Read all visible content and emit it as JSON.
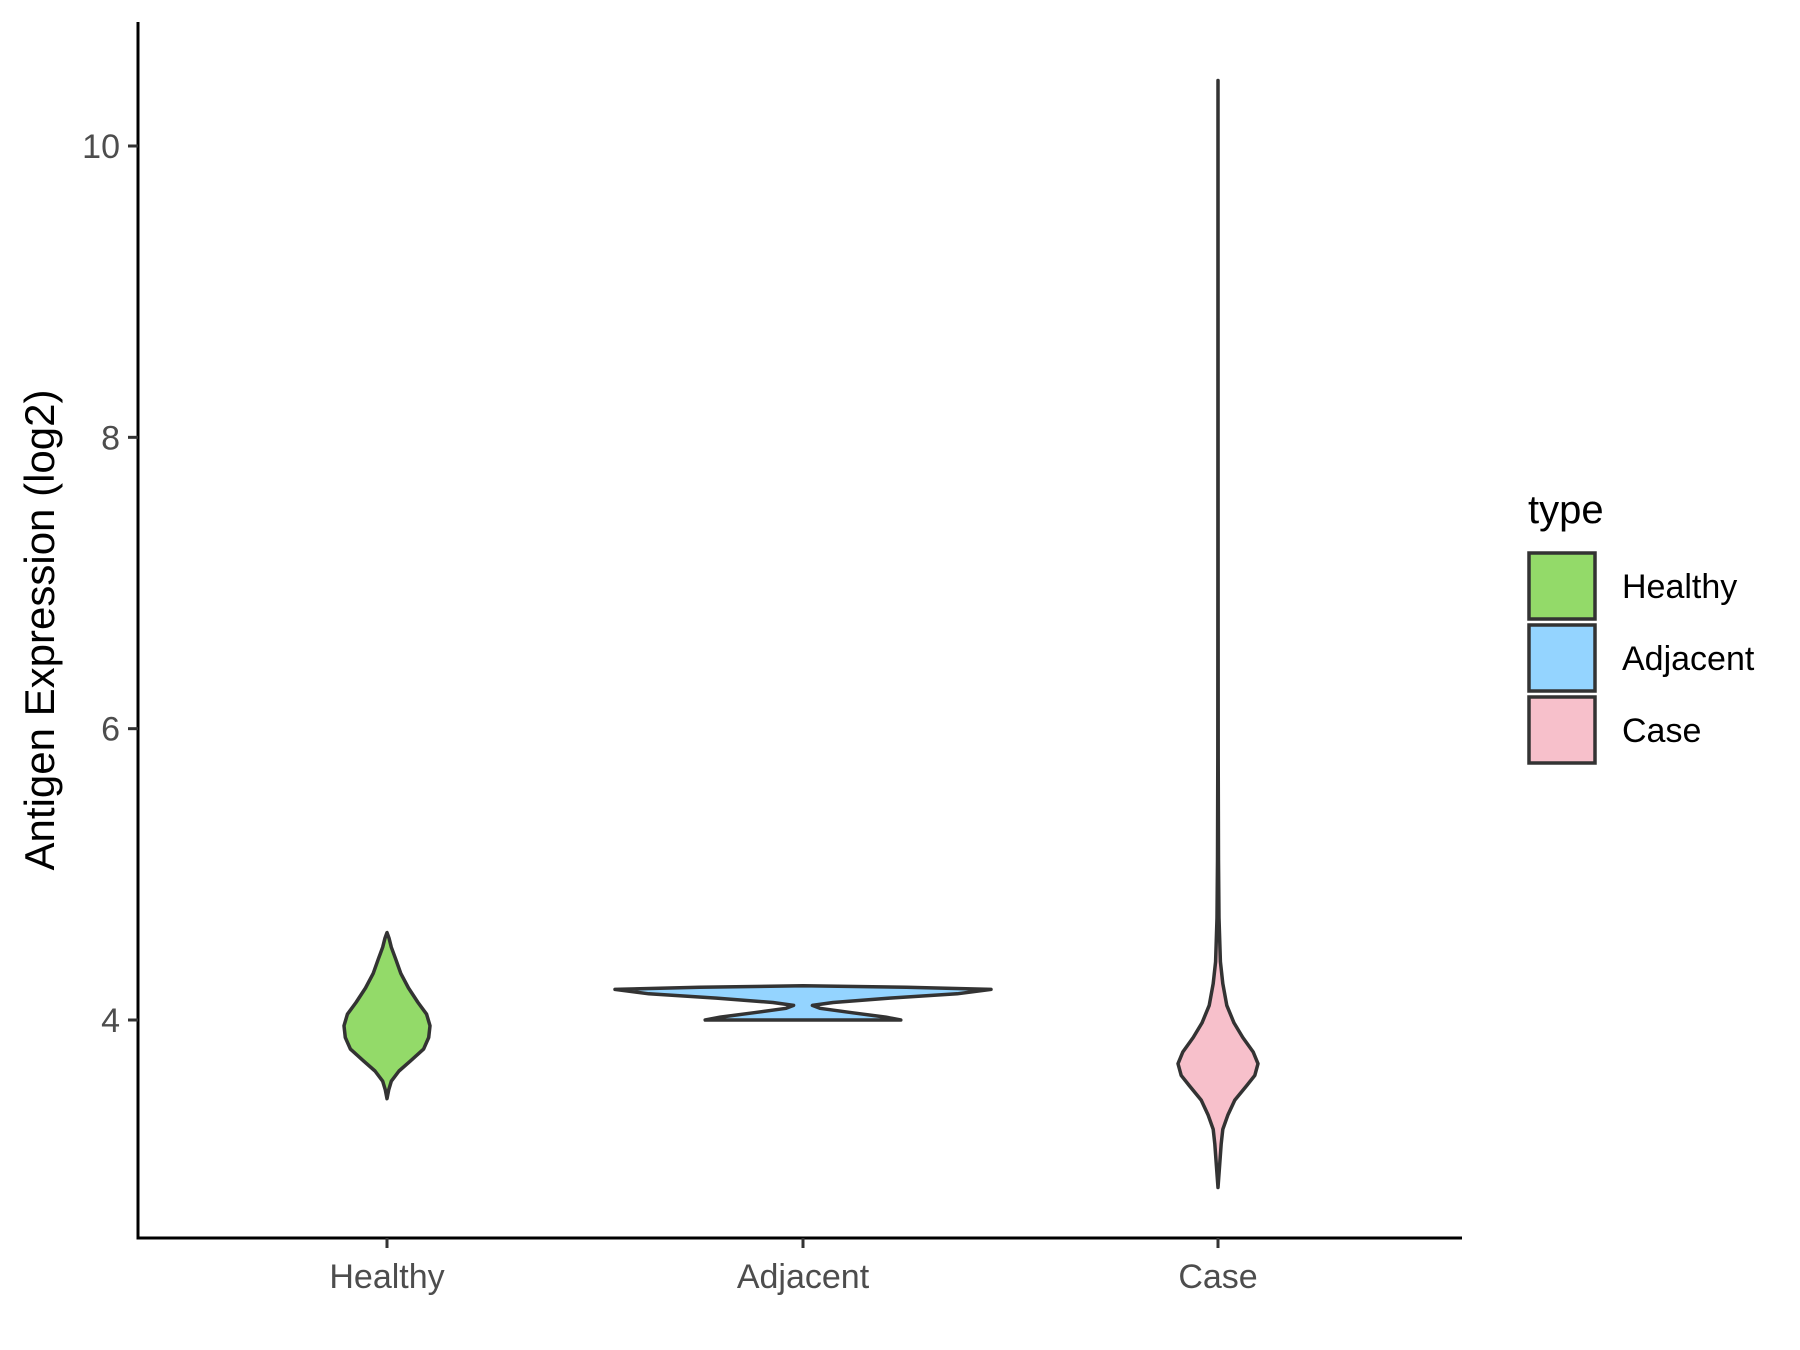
{
  "chart_data": {
    "type": "violin",
    "ylabel": "Antigen Expression (log2)",
    "xlabel": "",
    "title": "",
    "categories": [
      "Healthy",
      "Adjacent",
      "Case"
    ],
    "yticks": [
      4,
      6,
      8,
      10
    ],
    "ylim": [
      2.5,
      10.8
    ],
    "grid": false,
    "legend": {
      "title": "type",
      "position": "right",
      "entries": [
        {
          "label": "Healthy",
          "color": "#93DA69"
        },
        {
          "label": "Adjacent",
          "color": "#94D4FF"
        },
        {
          "label": "Case",
          "color": "#F7C0CB"
        }
      ]
    },
    "violins": [
      {
        "category": "Healthy",
        "color": "#93DA69",
        "profile": [
          [
            3.46,
            0.0
          ],
          [
            3.52,
            0.04
          ],
          [
            3.58,
            0.1
          ],
          [
            3.65,
            0.28
          ],
          [
            3.72,
            0.55
          ],
          [
            3.8,
            0.85
          ],
          [
            3.88,
            0.97
          ],
          [
            3.96,
            1.0
          ],
          [
            4.04,
            0.92
          ],
          [
            4.12,
            0.72
          ],
          [
            4.22,
            0.5
          ],
          [
            4.32,
            0.32
          ],
          [
            4.42,
            0.2
          ],
          [
            4.5,
            0.1
          ],
          [
            4.56,
            0.05
          ],
          [
            4.6,
            0.0
          ]
        ]
      },
      {
        "category": "Adjacent",
        "color": "#94D4FF",
        "profile": [
          [
            4.0,
            0.52
          ],
          [
            4.02,
            0.44
          ],
          [
            4.05,
            0.26
          ],
          [
            4.08,
            0.09
          ],
          [
            4.1,
            0.05
          ],
          [
            4.12,
            0.16
          ],
          [
            4.15,
            0.46
          ],
          [
            4.18,
            0.82
          ],
          [
            4.21,
            1.0
          ],
          [
            4.225,
            0.55
          ],
          [
            4.235,
            0.0
          ]
        ]
      },
      {
        "category": "Case",
        "color": "#F7C0CB",
        "profile": [
          [
            2.85,
            0.0
          ],
          [
            3.0,
            0.04
          ],
          [
            3.15,
            0.08
          ],
          [
            3.25,
            0.12
          ],
          [
            3.35,
            0.25
          ],
          [
            3.45,
            0.42
          ],
          [
            3.55,
            0.72
          ],
          [
            3.62,
            0.92
          ],
          [
            3.7,
            1.0
          ],
          [
            3.78,
            0.88
          ],
          [
            3.88,
            0.62
          ],
          [
            3.98,
            0.4
          ],
          [
            4.1,
            0.22
          ],
          [
            4.25,
            0.12
          ],
          [
            4.4,
            0.06
          ],
          [
            4.7,
            0.025
          ],
          [
            5.1,
            0.012
          ],
          [
            5.8,
            0.004
          ],
          [
            7.0,
            0.002
          ],
          [
            10.45,
            0.0
          ]
        ]
      }
    ]
  }
}
